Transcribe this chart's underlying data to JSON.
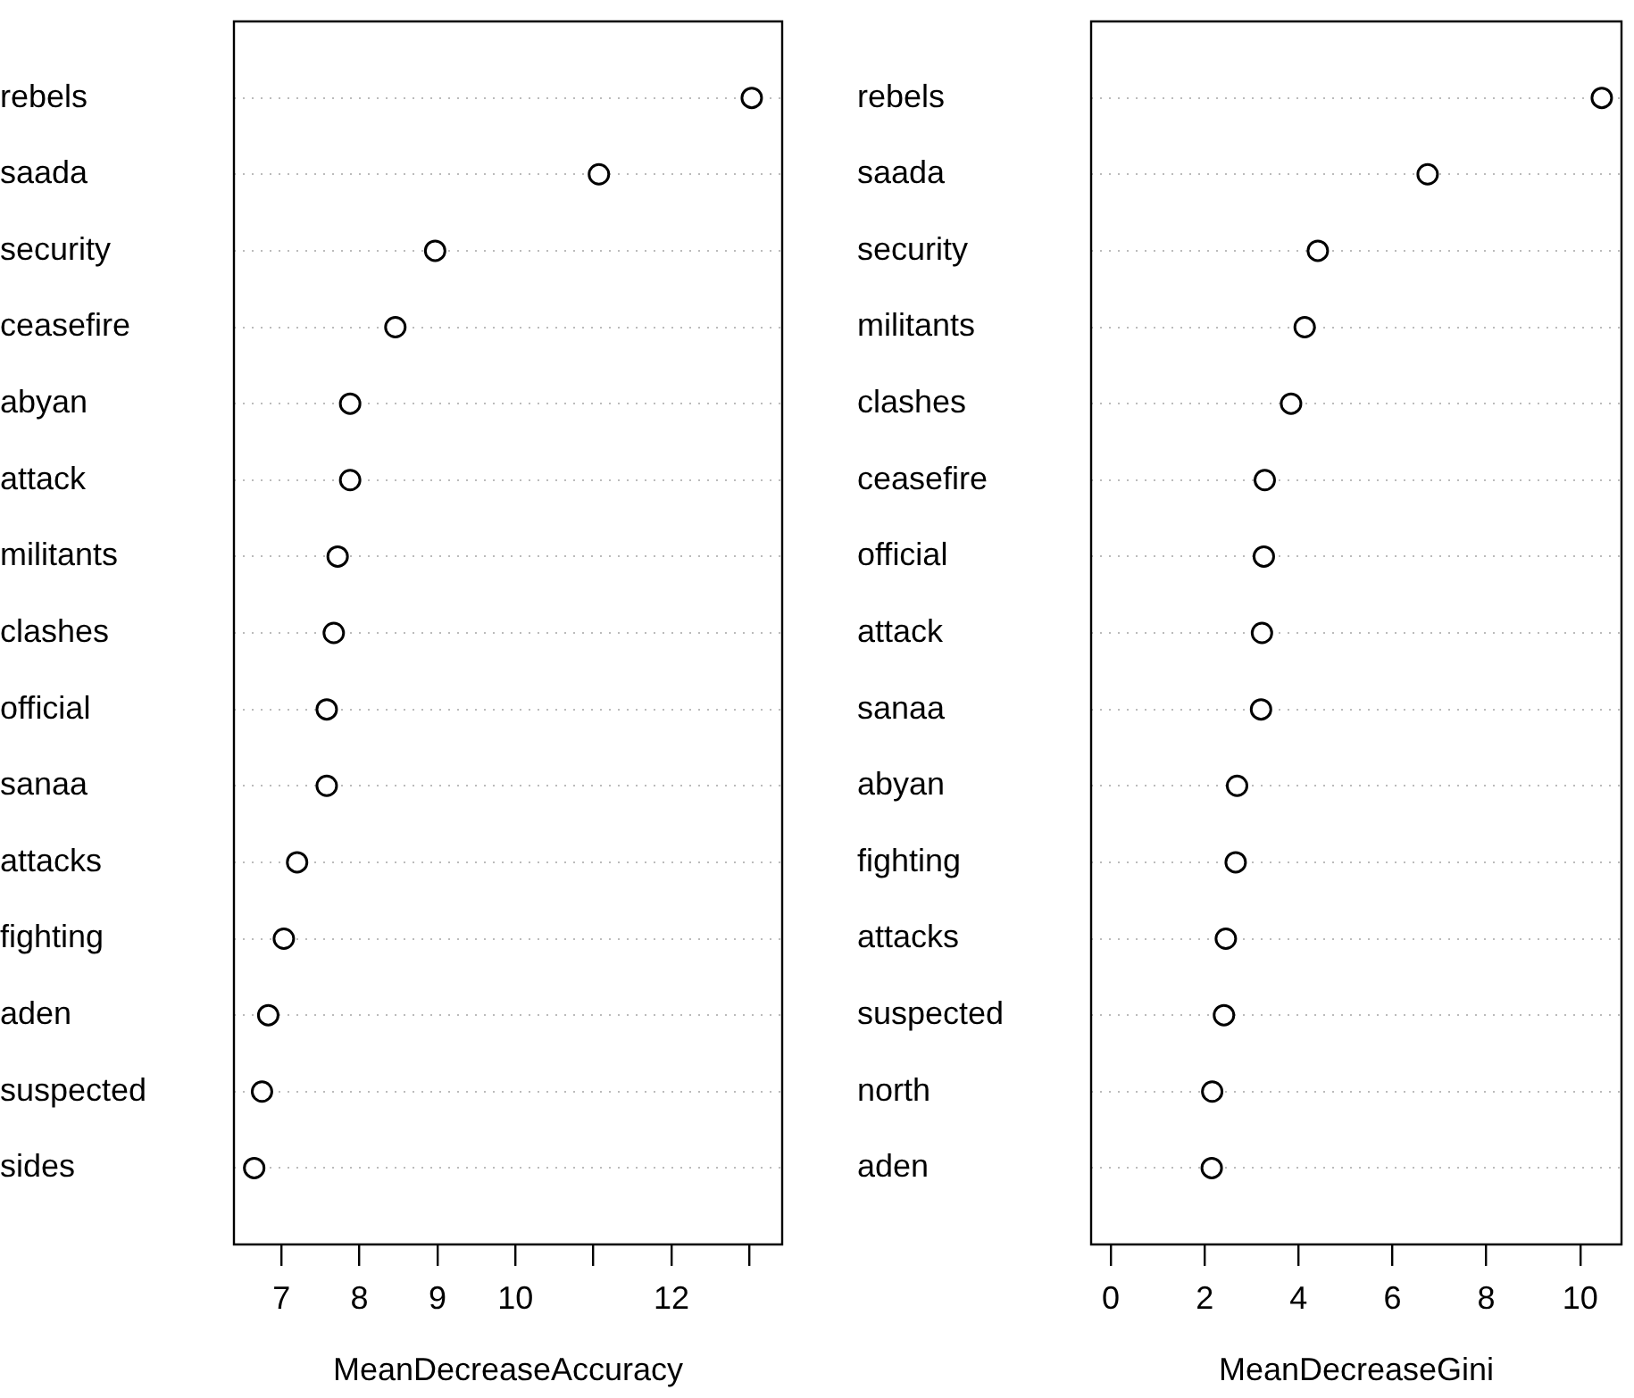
{
  "chart_data": [
    {
      "type": "scatter",
      "orientation": "horizontal",
      "xlabel": "MeanDecreaseAccuracy",
      "categories": [
        "rebels",
        "saada",
        "security",
        "ceasefire",
        "abyan",
        "attack",
        "militants",
        "clashes",
        "official",
        "sanaa",
        "attacks",
        "fighting",
        "aden",
        "suspected",
        "sides"
      ],
      "values": [
        13.03,
        11.07,
        8.97,
        8.46,
        7.88,
        7.88,
        7.72,
        7.67,
        7.58,
        7.58,
        7.2,
        7.03,
        6.83,
        6.75,
        6.65
      ],
      "color": "#000000",
      "marker": "circle",
      "grid": "y",
      "xlim": [
        6.39,
        13.42
      ],
      "xticks": [
        7,
        8,
        9,
        10,
        {
          "value": 11,
          "label": null
        },
        12,
        {
          "value": 13,
          "label": null
        }
      ]
    },
    {
      "type": "scatter",
      "orientation": "horizontal",
      "xlabel": "MeanDecreaseGini",
      "categories": [
        "rebels",
        "saada",
        "security",
        "militants",
        "clashes",
        "ceasefire",
        "official",
        "attack",
        "sanaa",
        "abyan",
        "fighting",
        "attacks",
        "suspected",
        "north",
        "aden"
      ],
      "values": [
        10.46,
        6.75,
        4.41,
        4.13,
        3.84,
        3.28,
        3.26,
        3.22,
        3.2,
        2.69,
        2.66,
        2.45,
        2.41,
        2.16,
        2.15
      ],
      "color": "#000000",
      "marker": "circle",
      "grid": "y",
      "xlim": [
        -0.42,
        10.88
      ],
      "xticks": [
        0,
        2,
        4,
        6,
        8,
        10
      ]
    }
  ]
}
